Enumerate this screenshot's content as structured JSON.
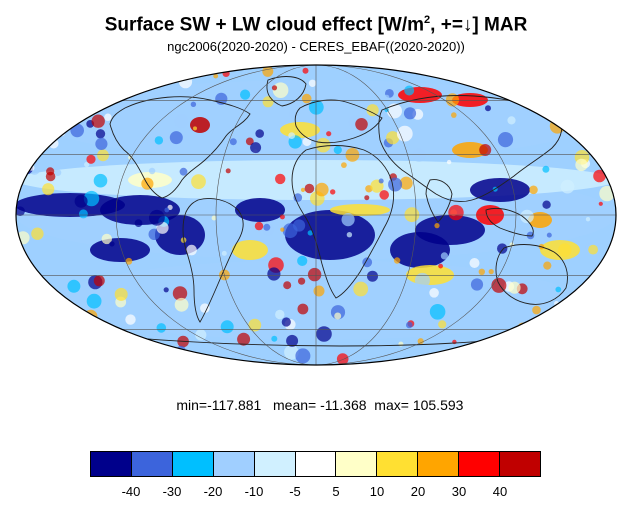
{
  "title": {
    "main": "Surface SW + LW cloud effect [W/m",
    "sup": "2",
    "rest": ", +=↓]  MAR"
  },
  "subtitle": "ngc2006(2020-2020) - CERES_EBAF((2020-2020))",
  "stats": {
    "min_label": "min=",
    "min": "-117.881",
    "mean_label": "mean=",
    "mean": "-11.368",
    "max_label": "max=",
    "max": "105.593",
    "text": "min=-117.881   mean= -11.368  max= 105.593"
  },
  "map": {
    "projection": "mollweide",
    "graticule": "30-degree meridians and parallels",
    "coastlines": true
  },
  "colorbar": {
    "colors": [
      "#00008b",
      "#3c64dc",
      "#00bfff",
      "#a0cfff",
      "#d0f0ff",
      "#ffffff",
      "#ffffc8",
      "#ffe032",
      "#ffa500",
      "#ff0000",
      "#c00000"
    ],
    "labels": [
      "-40",
      "-30",
      "-20",
      "-10",
      "-5",
      "5",
      "10",
      "20",
      "30",
      "40"
    ]
  }
}
